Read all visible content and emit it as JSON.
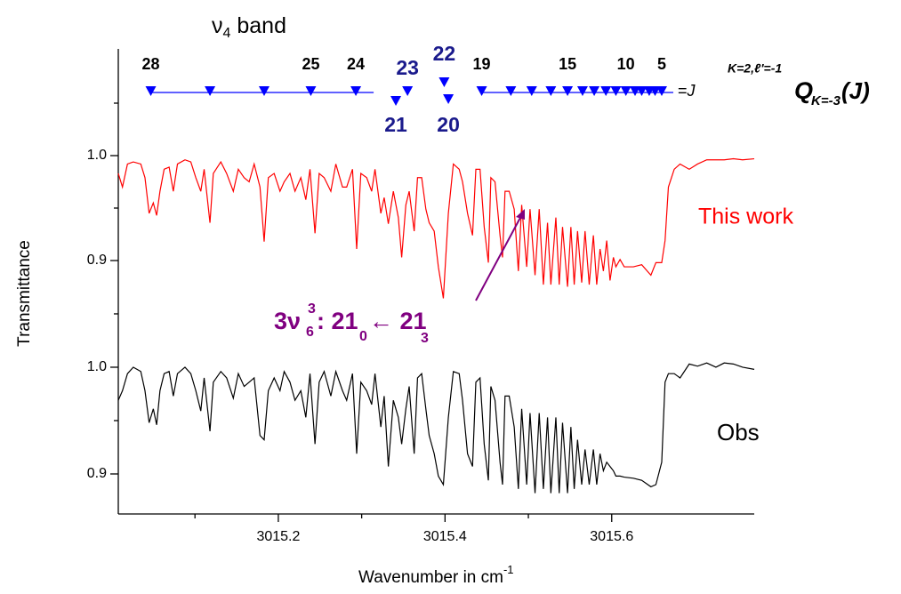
{
  "chart_data": {
    "type": "line",
    "title": {
      "symbol": "ν",
      "sub": "4",
      "text": " band"
    },
    "x_label": {
      "text": "Wavenumber in cm",
      "sup": "-1"
    },
    "y_label": "Transmittance",
    "xlim": [
      3015.008,
      3015.771
    ],
    "xticks": [
      3015.2,
      3015.4,
      3015.6
    ],
    "xminorticks": [
      3015.1,
      3015.3,
      3015.5
    ],
    "ylim": [
      0.8805,
      1.1017
    ],
    "yticks": [
      {
        "value": 1.0,
        "label": "1.0"
      },
      0.9
    ],
    "yminorticks": [
      1.05,
      0.95
    ],
    "y2lim": [
      0.8625,
      1.0808
    ],
    "y2ticks": [
      {
        "value": 1.0,
        "label": "1.0"
      },
      0.9
    ],
    "y2minorticks": [
      1.05,
      0.95
    ],
    "x": [
      3015.008,
      3015.013,
      3015.019,
      3015.026,
      3015.035,
      3015.04,
      3015.045,
      3015.05,
      3015.054,
      3015.058,
      3015.063,
      3015.069,
      3015.074,
      3015.079,
      3015.088,
      3015.095,
      3015.101,
      3015.107,
      3015.111,
      3015.118,
      3015.122,
      3015.131,
      3015.138,
      3015.146,
      3015.152,
      3015.159,
      3015.165,
      3015.171,
      3015.178,
      3015.183,
      3015.188,
      3015.195,
      3015.202,
      3015.207,
      3015.214,
      3015.22,
      3015.227,
      3015.233,
      3015.238,
      3015.244,
      3015.249,
      3015.255,
      3015.263,
      3015.269,
      3015.277,
      3015.282,
      3015.289,
      3015.294,
      3015.299,
      3015.306,
      3015.312,
      3015.316,
      3015.323,
      3015.327,
      3015.332,
      3015.338,
      3015.344,
      3015.348,
      3015.353,
      3015.357,
      3015.363,
      3015.367,
      3015.372,
      3015.377,
      3015.381,
      3015.387,
      3015.392,
      3015.398,
      3015.404,
      3015.41,
      3015.417,
      3015.421,
      3015.427,
      3015.433,
      3015.437,
      3015.442,
      3015.447,
      3015.452,
      3015.455,
      3015.46,
      3015.466,
      3015.469,
      3015.472,
      3015.477,
      3015.483,
      3015.488,
      3015.492,
      3015.498,
      3015.502,
      3015.508,
      3015.513,
      3015.518,
      3015.523,
      3015.527,
      3015.533,
      3015.537,
      3015.541,
      3015.547,
      3015.551,
      3015.555,
      3015.559,
      3015.564,
      3015.568,
      3015.573,
      3015.578,
      3015.582,
      3015.586,
      3015.59,
      3015.594,
      3015.598,
      3015.602,
      3015.605,
      3015.61,
      3015.615,
      3015.626,
      3015.636,
      3015.647,
      3015.653,
      3015.66,
      3015.664,
      3015.668,
      3015.675,
      3015.682,
      3015.693,
      3015.703,
      3015.714,
      3015.725,
      3015.735,
      3015.746,
      3015.757,
      3015.771
    ],
    "series": [
      {
        "name": "This work",
        "color": "#ff0000",
        "values": [
          0.983,
          0.97,
          0.992,
          0.994,
          0.992,
          0.979,
          0.945,
          0.955,
          0.943,
          0.966,
          0.987,
          0.989,
          0.966,
          0.992,
          0.996,
          0.994,
          0.979,
          0.966,
          0.987,
          0.936,
          0.983,
          0.994,
          0.983,
          0.966,
          0.987,
          0.979,
          0.975,
          0.992,
          0.97,
          0.918,
          0.979,
          0.983,
          0.966,
          0.975,
          0.983,
          0.966,
          0.979,
          0.958,
          0.987,
          0.926,
          0.983,
          0.979,
          0.966,
          0.992,
          0.97,
          0.97,
          0.987,
          0.911,
          0.983,
          0.979,
          0.966,
          0.987,
          0.945,
          0.96,
          0.935,
          0.966,
          0.941,
          0.903,
          0.953,
          0.966,
          0.928,
          0.979,
          0.979,
          0.949,
          0.936,
          0.928,
          0.894,
          0.864,
          0.945,
          0.992,
          0.987,
          0.975,
          0.945,
          0.924,
          0.987,
          0.987,
          0.932,
          0.898,
          0.979,
          0.975,
          0.924,
          0.903,
          0.966,
          0.966,
          0.949,
          0.89,
          0.953,
          0.894,
          0.949,
          0.886,
          0.949,
          0.877,
          0.936,
          0.877,
          0.941,
          0.877,
          0.932,
          0.875,
          0.932,
          0.877,
          0.928,
          0.879,
          0.928,
          0.877,
          0.924,
          0.877,
          0.911,
          0.89,
          0.919,
          0.881,
          0.903,
          0.894,
          0.901,
          0.894,
          0.894,
          0.896,
          0.886,
          0.898,
          0.898,
          0.919,
          0.97,
          0.987,
          0.992,
          0.987,
          0.992,
          0.996,
          0.996,
          0.996,
          0.997,
          0.996,
          0.997
        ]
      },
      {
        "name": "Obs",
        "color": "#000000",
        "axis": "y2",
        "values": [
          0.969,
          0.978,
          0.994,
          1.0,
          0.996,
          0.978,
          0.948,
          0.961,
          0.946,
          0.978,
          0.994,
          0.996,
          0.973,
          0.994,
          1.0,
          0.994,
          0.978,
          0.959,
          0.99,
          0.94,
          0.986,
          0.996,
          0.99,
          0.971,
          0.994,
          0.982,
          0.986,
          0.99,
          0.936,
          0.932,
          0.978,
          0.99,
          0.978,
          0.996,
          0.986,
          0.969,
          0.978,
          0.953,
          0.994,
          0.928,
          0.986,
          0.996,
          0.973,
          0.996,
          0.978,
          0.969,
          0.994,
          0.919,
          0.986,
          0.978,
          0.965,
          0.994,
          0.944,
          0.973,
          0.907,
          0.969,
          0.953,
          0.928,
          0.961,
          0.982,
          0.919,
          0.99,
          0.994,
          0.961,
          0.936,
          0.919,
          0.898,
          0.89,
          0.953,
          0.996,
          0.994,
          0.969,
          0.919,
          0.907,
          0.986,
          0.99,
          0.928,
          0.894,
          0.982,
          0.969,
          0.911,
          0.89,
          0.973,
          0.973,
          0.944,
          0.886,
          0.961,
          0.89,
          0.957,
          0.882,
          0.957,
          0.886,
          0.953,
          0.882,
          0.953,
          0.882,
          0.948,
          0.882,
          0.944,
          0.886,
          0.932,
          0.89,
          0.923,
          0.89,
          0.923,
          0.89,
          0.919,
          0.903,
          0.911,
          0.907,
          0.903,
          0.898,
          0.898,
          0.897,
          0.896,
          0.894,
          0.888,
          0.89,
          0.911,
          0.986,
          0.994,
          0.994,
          0.99,
          1.003,
          1.001,
          1.004,
          1.0,
          1.004,
          1.003,
          1.0,
          0.998
        ]
      }
    ],
    "markers": {
      "color": "#0000ff",
      "x": [
        3015.047,
        3015.118,
        3015.183,
        3015.239,
        3015.293,
        3015.355,
        3015.399,
        3015.341,
        3015.404,
        3015.444,
        3015.479,
        3015.504,
        3015.527,
        3015.547,
        3015.565,
        3015.579,
        3015.593,
        3015.605,
        3015.617,
        3015.628,
        3015.636,
        3015.645,
        3015.652,
        3015.66
      ],
      "J": [
        28,
        null,
        null,
        25,
        24,
        23,
        22,
        21,
        20,
        19,
        null,
        null,
        null,
        15,
        null,
        null,
        null,
        null,
        10,
        null,
        null,
        null,
        null,
        5
      ]
    },
    "branch_label": {
      "eq": "=",
      "J": "J",
      "sup": "K=2,ℓ'=-1",
      "Q": "Q",
      "sub": "K=-3",
      "arg": "(J)"
    },
    "annotation": {
      "color": "#800080",
      "parts": [
        "3ν",
        "6",
        "3",
        ": 21",
        "0",
        "← 21",
        "3"
      ]
    }
  }
}
